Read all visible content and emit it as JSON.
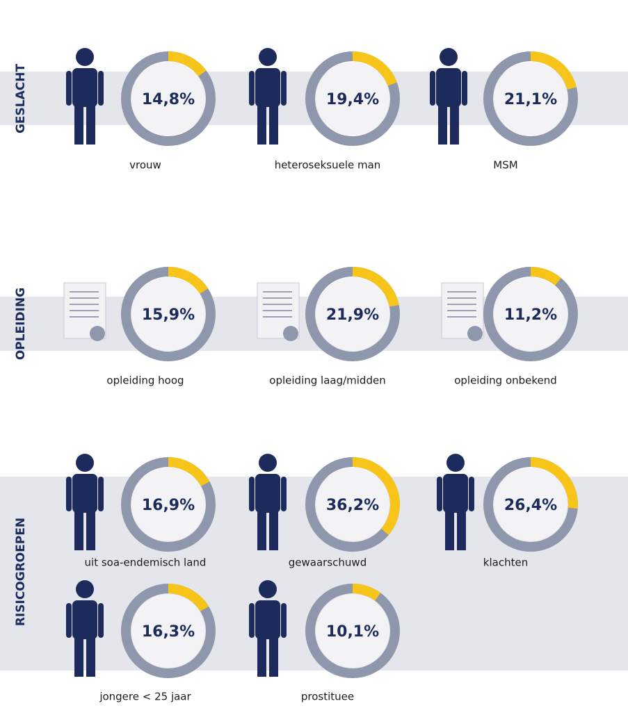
{
  "chart_data": [
    {
      "type": "donut",
      "group": "GESLACHT",
      "title": "vrouw",
      "values": [
        14.8
      ],
      "value_labels": [
        "14,8%"
      ],
      "color": "#f7c41a",
      "rest_color": "#8f97ad"
    },
    {
      "type": "donut",
      "group": "GESLACHT",
      "title": "heteroseksuele man",
      "values": [
        19.4
      ],
      "value_labels": [
        "19,4%"
      ],
      "color": "#f7c41a",
      "rest_color": "#8f97ad"
    },
    {
      "type": "donut",
      "group": "GESLACHT",
      "title": "MSM",
      "values": [
        21.1
      ],
      "value_labels": [
        "21,1%"
      ],
      "color": "#f7c41a",
      "rest_color": "#8f97ad"
    },
    {
      "type": "donut",
      "group": "OPLEIDING",
      "title": "opleiding hoog",
      "values": [
        15.9
      ],
      "value_labels": [
        "15,9%"
      ],
      "color": "#f7c41a",
      "rest_color": "#8f97ad"
    },
    {
      "type": "donut",
      "group": "OPLEIDING",
      "title": "opleiding laag/midden",
      "values": [
        21.9
      ],
      "value_labels": [
        "21,9%"
      ],
      "color": "#f7c41a",
      "rest_color": "#8f97ad"
    },
    {
      "type": "donut",
      "group": "OPLEIDING",
      "title": "opleiding onbekend",
      "values": [
        11.2
      ],
      "value_labels": [
        "11,2%"
      ],
      "color": "#f7c41a",
      "rest_color": "#8f97ad"
    },
    {
      "type": "donut",
      "group": "RISICOGROEPEN",
      "title": "uit soa-endemisch land",
      "values": [
        16.9
      ],
      "value_labels": [
        "16,9%"
      ],
      "color": "#f7c41a",
      "rest_color": "#8f97ad"
    },
    {
      "type": "donut",
      "group": "RISICOGROEPEN",
      "title": "gewaarschuwd",
      "values": [
        36.2
      ],
      "value_labels": [
        "36,2%"
      ],
      "color": "#f7c41a",
      "rest_color": "#8f97ad"
    },
    {
      "type": "donut",
      "group": "RISICOGROEPEN",
      "title": "klachten",
      "values": [
        26.4
      ],
      "value_labels": [
        "26,4%"
      ],
      "color": "#f7c41a",
      "rest_color": "#8f97ad"
    },
    {
      "type": "donut",
      "group": "RISICOGROEPEN",
      "title": "jongere < 25 jaar",
      "values": [
        16.3
      ],
      "value_labels": [
        "16,3%"
      ],
      "color": "#f7c41a",
      "rest_color": "#8f97ad"
    },
    {
      "type": "donut",
      "group": "RISICOGROEPEN",
      "title": "prostituee",
      "values": [
        10.1
      ],
      "value_labels": [
        "10,1%"
      ],
      "color": "#f7c41a",
      "rest_color": "#8f97ad"
    }
  ]
}
